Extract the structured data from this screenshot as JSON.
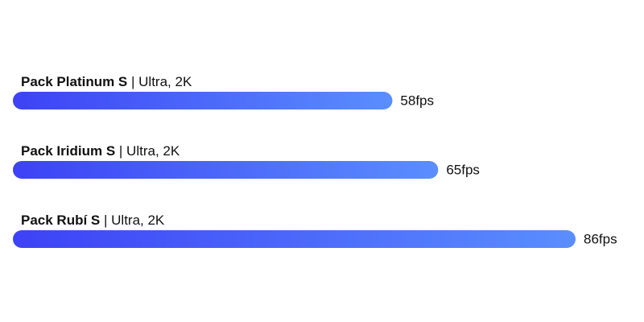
{
  "chart_data": {
    "type": "hbar",
    "categories": [
      "Pack Platinum S",
      "Pack Iridium S",
      "Pack Rubí S"
    ],
    "category_details": [
      "| Ultra, 2K",
      "| Ultra, 2K",
      "| Ultra, 2K"
    ],
    "values": [
      58,
      65,
      86
    ],
    "value_labels": [
      "58fps",
      "65fps",
      "86fps"
    ],
    "xlim": [
      0,
      86
    ],
    "gradient": [
      "#3d42f6",
      "#5a8efe"
    ]
  }
}
